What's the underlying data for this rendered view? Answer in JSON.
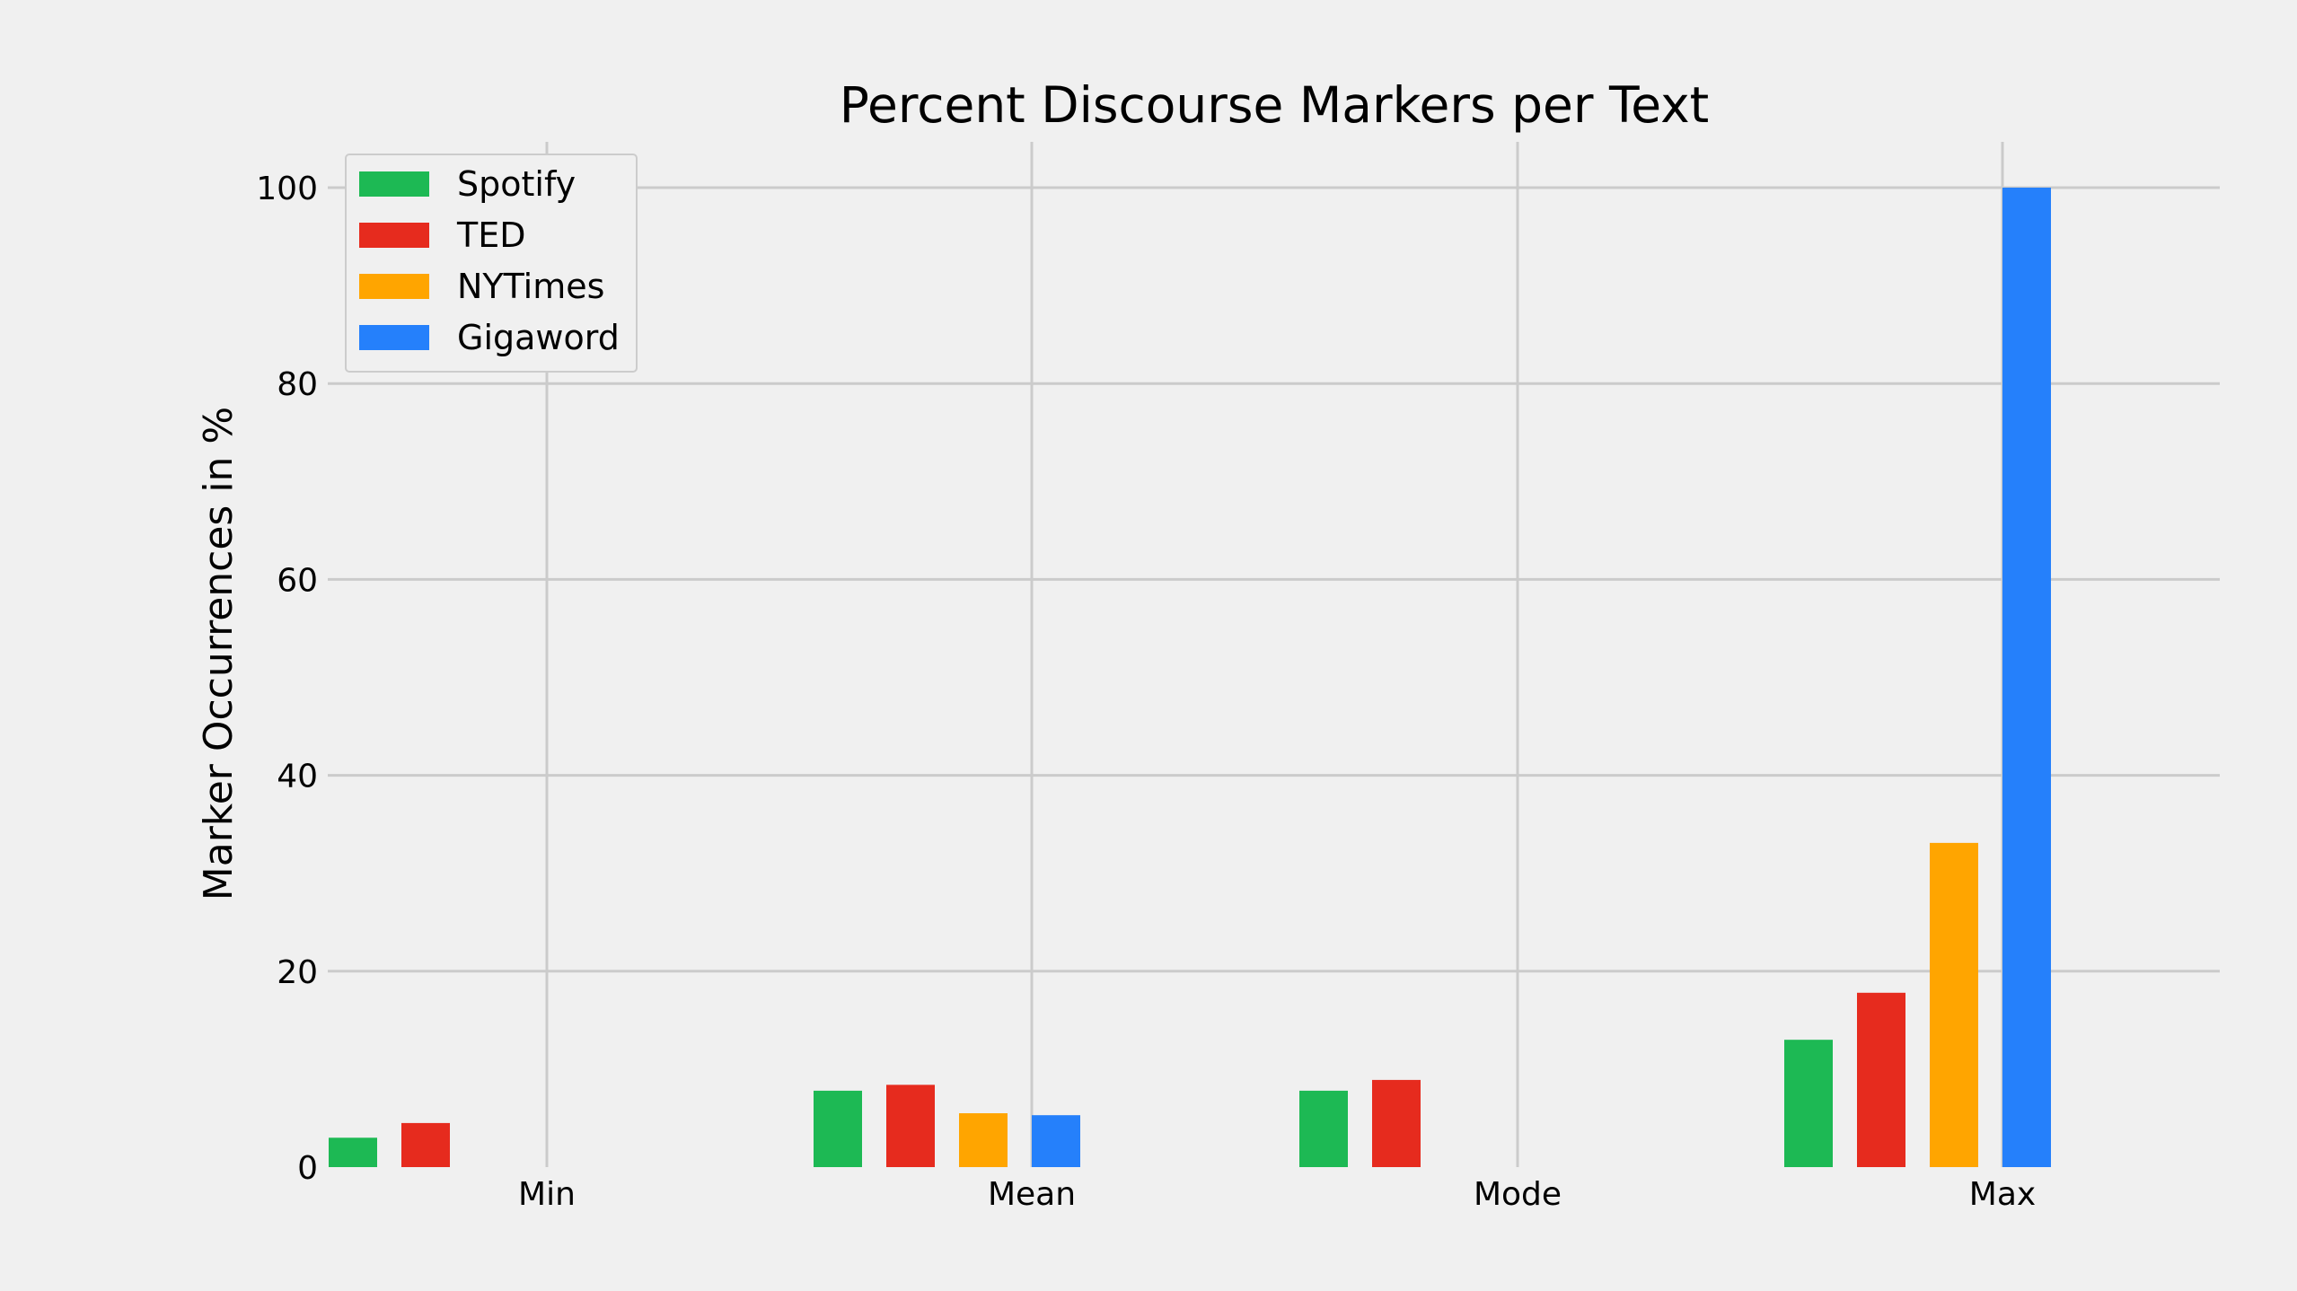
{
  "chart_data": {
    "type": "bar",
    "title": "Percent Discourse Markers per Text",
    "xlabel": "",
    "ylabel": "Marker Occurrences in %",
    "categories": [
      "Min",
      "Mean",
      "Mode",
      "Max"
    ],
    "series": [
      {
        "name": "Spotify",
        "color": "#1db954",
        "values": [
          3.0,
          7.8,
          7.8,
          13.0
        ]
      },
      {
        "name": "TED",
        "color": "#e62b1e",
        "values": [
          4.5,
          8.4,
          8.9,
          17.8
        ]
      },
      {
        "name": "NYTimes",
        "color": "#ffa500",
        "values": [
          0,
          5.5,
          0,
          33.1
        ]
      },
      {
        "name": "Gigaword",
        "color": "#2580fb",
        "values": [
          0,
          5.3,
          0,
          100.0
        ]
      }
    ],
    "ylim": [
      0,
      105
    ],
    "yticks": [
      0,
      20,
      40,
      60,
      80,
      100
    ],
    "grid": true,
    "legend_position": "top-left"
  }
}
